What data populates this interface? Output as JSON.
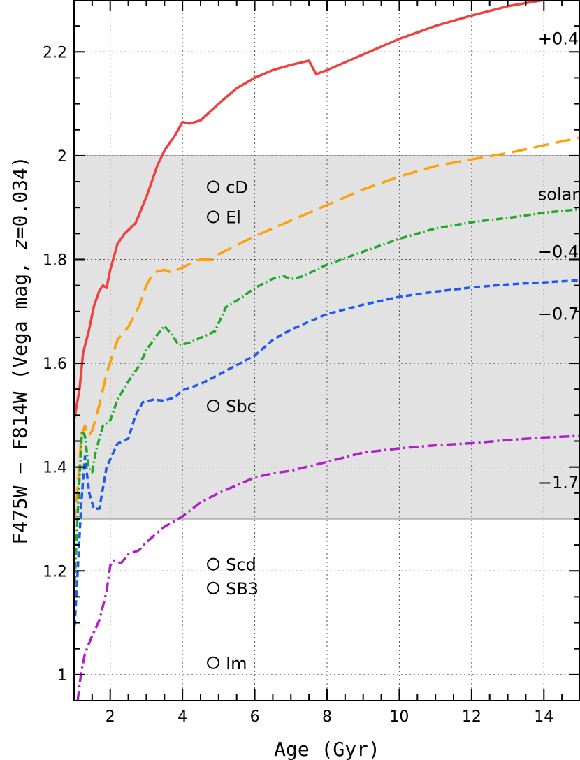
{
  "chart_data": {
    "type": "line",
    "xlabel": "Age (Gyr)",
    "ylabel_parts": [
      "F475W − F814W (Vega mag, ",
      "z",
      "=0.034)"
    ],
    "xlim": [
      1,
      15
    ],
    "ylim": [
      0.95,
      2.3
    ],
    "x_ticks": [
      2,
      4,
      6,
      8,
      10,
      12,
      14
    ],
    "x_tick_labels": [
      "2",
      "4",
      "6",
      "8",
      "10",
      "12",
      "14"
    ],
    "y_ticks": [
      1.0,
      1.2,
      1.4,
      1.6,
      1.8,
      2.0,
      2.2
    ],
    "y_tick_labels": [
      "1",
      "1.2",
      "1.4",
      "1.6",
      "1.8",
      "2",
      "2.2"
    ],
    "grid": true,
    "shaded_band": [
      1.3,
      2.0
    ],
    "series": [
      {
        "name": "+0.4",
        "color": "#f04040",
        "dash": "solid",
        "label_pos": [
          14.4,
          2.225
        ],
        "points": [
          [
            1.0,
            1.49
          ],
          [
            1.15,
            1.55
          ],
          [
            1.25,
            1.62
          ],
          [
            1.4,
            1.66
          ],
          [
            1.55,
            1.71
          ],
          [
            1.7,
            1.74
          ],
          [
            1.8,
            1.75
          ],
          [
            1.9,
            1.745
          ],
          [
            2.0,
            1.78
          ],
          [
            2.2,
            1.83
          ],
          [
            2.4,
            1.85
          ],
          [
            2.7,
            1.87
          ],
          [
            3.0,
            1.92
          ],
          [
            3.3,
            1.98
          ],
          [
            3.5,
            2.01
          ],
          [
            3.8,
            2.04
          ],
          [
            4.0,
            2.065
          ],
          [
            4.2,
            2.062
          ],
          [
            4.5,
            2.068
          ],
          [
            5.0,
            2.1
          ],
          [
            5.5,
            2.13
          ],
          [
            6.0,
            2.15
          ],
          [
            6.5,
            2.165
          ],
          [
            7.0,
            2.175
          ],
          [
            7.5,
            2.183
          ],
          [
            7.7,
            2.157
          ],
          [
            8.0,
            2.165
          ],
          [
            9.0,
            2.195
          ],
          [
            10.0,
            2.225
          ],
          [
            11.0,
            2.25
          ],
          [
            12.0,
            2.27
          ],
          [
            13.0,
            2.288
          ],
          [
            14.0,
            2.3
          ],
          [
            15.0,
            2.31
          ]
        ]
      },
      {
        "name": "solar",
        "color": "#ffa00a",
        "dash": "22,10",
        "label_pos": [
          14.4,
          1.925
        ],
        "points": [
          [
            1.0,
            1.29
          ],
          [
            1.1,
            1.36
          ],
          [
            1.2,
            1.46
          ],
          [
            1.3,
            1.48
          ],
          [
            1.4,
            1.46
          ],
          [
            1.5,
            1.47
          ],
          [
            1.7,
            1.52
          ],
          [
            1.9,
            1.58
          ],
          [
            2.2,
            1.645
          ],
          [
            2.5,
            1.67
          ],
          [
            2.8,
            1.71
          ],
          [
            3.0,
            1.75
          ],
          [
            3.2,
            1.775
          ],
          [
            3.5,
            1.78
          ],
          [
            3.7,
            1.775
          ],
          [
            4.0,
            1.785
          ],
          [
            4.5,
            1.8
          ],
          [
            4.8,
            1.8
          ],
          [
            5.0,
            1.81
          ],
          [
            6.0,
            1.845
          ],
          [
            7.0,
            1.875
          ],
          [
            8.0,
            1.905
          ],
          [
            9.0,
            1.935
          ],
          [
            10.0,
            1.96
          ],
          [
            11.0,
            1.98
          ],
          [
            12.0,
            1.993
          ],
          [
            13.0,
            2.005
          ],
          [
            14.0,
            2.02
          ],
          [
            15.0,
            2.035
          ]
        ]
      },
      {
        "name": "−0.4",
        "color": "#20a828",
        "dash": "10,4,2,4",
        "label_pos": [
          14.4,
          1.815
        ],
        "points": [
          [
            1.0,
            1.15
          ],
          [
            1.08,
            1.28
          ],
          [
            1.15,
            1.38
          ],
          [
            1.22,
            1.47
          ],
          [
            1.3,
            1.46
          ],
          [
            1.4,
            1.4
          ],
          [
            1.5,
            1.39
          ],
          [
            1.6,
            1.43
          ],
          [
            1.8,
            1.48
          ],
          [
            2.0,
            1.49
          ],
          [
            2.2,
            1.53
          ],
          [
            2.5,
            1.565
          ],
          [
            2.8,
            1.595
          ],
          [
            3.0,
            1.625
          ],
          [
            3.3,
            1.655
          ],
          [
            3.5,
            1.672
          ],
          [
            3.7,
            1.655
          ],
          [
            3.9,
            1.635
          ],
          [
            4.2,
            1.64
          ],
          [
            4.6,
            1.652
          ],
          [
            4.9,
            1.662
          ],
          [
            5.2,
            1.708
          ],
          [
            5.6,
            1.725
          ],
          [
            6.0,
            1.745
          ],
          [
            6.5,
            1.763
          ],
          [
            6.8,
            1.768
          ],
          [
            7.0,
            1.762
          ],
          [
            7.3,
            1.767
          ],
          [
            8.0,
            1.79
          ],
          [
            9.0,
            1.815
          ],
          [
            10.0,
            1.84
          ],
          [
            11.0,
            1.86
          ],
          [
            12.0,
            1.872
          ],
          [
            13.0,
            1.88
          ],
          [
            14.0,
            1.89
          ],
          [
            15.0,
            1.897
          ]
        ]
      },
      {
        "name": "−0.7",
        "color": "#1e5af0",
        "dash": "9,5",
        "label_pos": [
          14.4,
          1.695
        ],
        "points": [
          [
            1.0,
            1.075
          ],
          [
            1.1,
            1.2
          ],
          [
            1.2,
            1.33
          ],
          [
            1.3,
            1.42
          ],
          [
            1.42,
            1.35
          ],
          [
            1.55,
            1.32
          ],
          [
            1.7,
            1.32
          ],
          [
            1.9,
            1.4
          ],
          [
            2.2,
            1.445
          ],
          [
            2.5,
            1.455
          ],
          [
            2.7,
            1.5
          ],
          [
            2.9,
            1.525
          ],
          [
            3.2,
            1.53
          ],
          [
            3.5,
            1.528
          ],
          [
            3.8,
            1.535
          ],
          [
            4.0,
            1.548
          ],
          [
            4.5,
            1.56
          ],
          [
            5.0,
            1.578
          ],
          [
            6.0,
            1.615
          ],
          [
            6.5,
            1.645
          ],
          [
            7.0,
            1.665
          ],
          [
            7.5,
            1.68
          ],
          [
            8.0,
            1.695
          ],
          [
            9.0,
            1.713
          ],
          [
            10.0,
            1.728
          ],
          [
            11.0,
            1.738
          ],
          [
            12.0,
            1.746
          ],
          [
            13.0,
            1.752
          ],
          [
            14.0,
            1.756
          ],
          [
            15.0,
            1.76
          ]
        ]
      },
      {
        "name": "−1.7",
        "color": "#b020c8",
        "dash": "14,5,3,5",
        "label_pos": [
          14.4,
          1.37
        ],
        "points": [
          [
            1.1,
            0.95
          ],
          [
            1.15,
            0.98
          ],
          [
            1.2,
            1.005
          ],
          [
            1.3,
            1.04
          ],
          [
            1.5,
            1.075
          ],
          [
            1.7,
            1.105
          ],
          [
            1.9,
            1.16
          ],
          [
            2.0,
            1.21
          ],
          [
            2.1,
            1.22
          ],
          [
            2.3,
            1.215
          ],
          [
            2.5,
            1.232
          ],
          [
            2.8,
            1.24
          ],
          [
            3.0,
            1.255
          ],
          [
            3.5,
            1.285
          ],
          [
            4.0,
            1.305
          ],
          [
            4.5,
            1.332
          ],
          [
            5.0,
            1.35
          ],
          [
            5.5,
            1.365
          ],
          [
            6.0,
            1.38
          ],
          [
            6.5,
            1.388
          ],
          [
            7.0,
            1.393
          ],
          [
            8.0,
            1.41
          ],
          [
            9.0,
            1.428
          ],
          [
            10.0,
            1.436
          ],
          [
            11.0,
            1.442
          ],
          [
            12.0,
            1.446
          ],
          [
            13.0,
            1.452
          ],
          [
            14.0,
            1.457
          ],
          [
            15.0,
            1.46
          ]
        ]
      }
    ],
    "markers": [
      {
        "label": "cD",
        "x": 4.85,
        "y": 1.94
      },
      {
        "label": "El",
        "x": 4.85,
        "y": 1.882
      },
      {
        "label": "Sbc",
        "x": 4.85,
        "y": 1.518
      },
      {
        "label": "Scd",
        "x": 4.85,
        "y": 1.213
      },
      {
        "label": "SB3",
        "x": 4.85,
        "y": 1.167
      },
      {
        "label": "Im",
        "x": 4.85,
        "y": 1.023
      }
    ]
  }
}
